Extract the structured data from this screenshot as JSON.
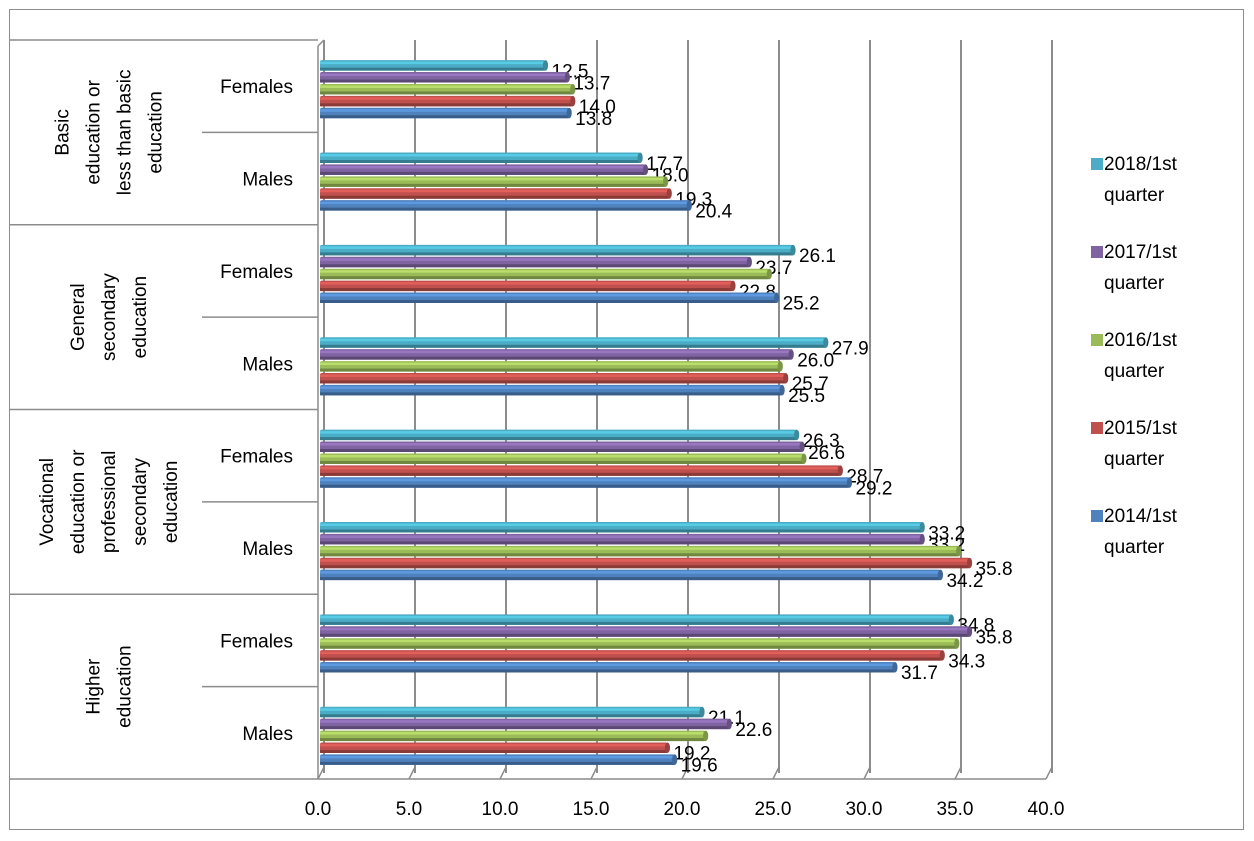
{
  "chart_data": {
    "type": "bar",
    "orientation": "horizontal",
    "title": "",
    "xlabel": "",
    "ylabel": "",
    "xlim": [
      0,
      40
    ],
    "x_ticks": [
      "0.0",
      "5.0",
      "10.0",
      "15.0",
      "20.0",
      "25.0",
      "30.0",
      "35.0",
      "40.0"
    ],
    "grid": true,
    "legend_position": "right",
    "groups": [
      {
        "label": [
          "Basic",
          "education or",
          "less than basic",
          "education"
        ],
        "subgroups": [
          "Females",
          "Males"
        ]
      },
      {
        "label": [
          "General",
          "secondary",
          "education"
        ],
        "subgroups": [
          "Females",
          "Males"
        ]
      },
      {
        "label": [
          "Vocational",
          "education or",
          "professional",
          "secondary",
          "education"
        ],
        "subgroups": [
          "Females",
          "Males"
        ]
      },
      {
        "label": [
          "Higher",
          "education"
        ],
        "subgroups": [
          "Females",
          "Males"
        ]
      }
    ],
    "categories": [
      "Basic education or less than basic education / Females",
      "Basic education or less than basic education / Males",
      "General secondary education / Females",
      "General secondary education / Males",
      "Vocational education or professional secondary education / Females",
      "Vocational education or professional secondary education / Males",
      "Higher education / Females",
      "Higher education / Males"
    ],
    "series": [
      {
        "name": "2018/1st quarter",
        "legend_lines": [
          "2018/1st",
          "quarter"
        ],
        "color": "#4bacc6",
        "values": [
          12.5,
          17.7,
          26.1,
          27.9,
          26.3,
          33.2,
          34.8,
          21.1
        ],
        "labels": [
          "12.5",
          "17.7",
          "26.1",
          "27.9",
          "26.3",
          "33.2",
          "34.8",
          "21.1"
        ]
      },
      {
        "name": "2017/1st quarter",
        "legend_lines": [
          "2017/1st",
          "quarter"
        ],
        "color": "#8064a2",
        "values": [
          13.7,
          18.0,
          23.7,
          26.0,
          26.6,
          33.2,
          35.8,
          22.6
        ],
        "labels": [
          "13.7",
          "18.0",
          "23.7",
          "26.0",
          "26.6",
          "33.2",
          "35.8",
          "22.6"
        ]
      },
      {
        "name": "2016/1st quarter",
        "legend_lines": [
          "2016/1st",
          "quarter"
        ],
        "color": "#9bbb59",
        "values": [
          14.0,
          19.1,
          24.8,
          25.4,
          26.7,
          35.2,
          35.1,
          21.3
        ],
        "labels": [
          "",
          "",
          "",
          "",
          "",
          "",
          "",
          ""
        ]
      },
      {
        "name": "2015/1st quarter",
        "legend_lines": [
          "2015/1st",
          "quarter"
        ],
        "color": "#c0504d",
        "values": [
          14.0,
          19.3,
          22.8,
          25.7,
          28.7,
          35.8,
          34.3,
          19.2
        ],
        "labels": [
          "14.0",
          "19.3",
          "22.8",
          "25.7",
          "28.7",
          "35.8",
          "34.3",
          "19.2"
        ]
      },
      {
        "name": "2014/1st quarter",
        "legend_lines": [
          "2014/1st",
          "quarter"
        ],
        "color": "#4f81bd",
        "values": [
          13.8,
          20.4,
          25.2,
          25.5,
          29.2,
          34.2,
          31.7,
          19.6
        ],
        "labels": [
          "13.8",
          "20.4",
          "25.2",
          "25.5",
          "29.2",
          "34.2",
          "31.7",
          "19.6"
        ]
      }
    ]
  }
}
